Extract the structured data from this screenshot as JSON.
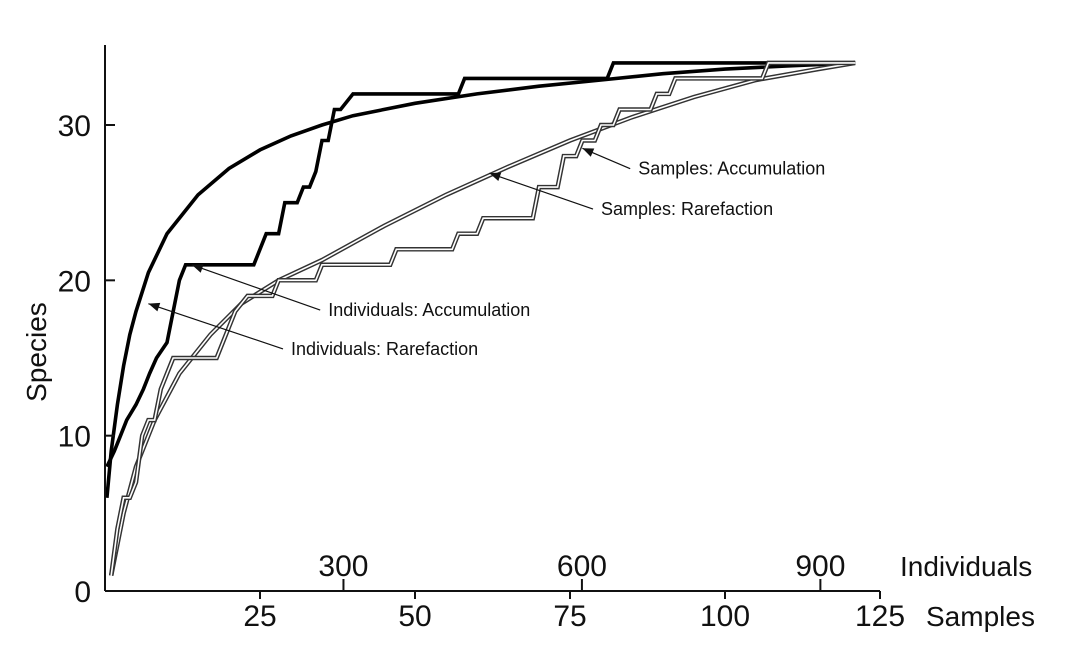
{
  "chart_data": {
    "type": "line",
    "ylabel": "Species",
    "ylim": [
      0,
      35
    ],
    "y_ticks": [
      0,
      10,
      20,
      30
    ],
    "x_axes": [
      {
        "name": "samples_axis",
        "label": "Samples",
        "range": [
          0,
          125
        ],
        "ticks": [
          25,
          50,
          75,
          100,
          125
        ]
      },
      {
        "name": "individuals_axis",
        "label": "Individuals",
        "range": [
          0,
          975
        ],
        "ticks": [
          300,
          600,
          900
        ]
      }
    ],
    "grid": false,
    "series": [
      {
        "name": "Individuals: Rarefaction",
        "style": "thick",
        "points": [
          [
            0.3,
            6
          ],
          [
            1,
            9
          ],
          [
            2,
            12
          ],
          [
            3,
            14.5
          ],
          [
            4,
            16.5
          ],
          [
            5,
            18
          ],
          [
            7,
            20.5
          ],
          [
            10,
            23
          ],
          [
            15,
            25.5
          ],
          [
            20,
            27.2
          ],
          [
            25,
            28.4
          ],
          [
            30,
            29.3
          ],
          [
            35,
            30
          ],
          [
            40,
            30.6
          ],
          [
            50,
            31.4
          ],
          [
            60,
            32
          ],
          [
            70,
            32.5
          ],
          [
            80,
            32.9
          ],
          [
            90,
            33.3
          ],
          [
            100,
            33.6
          ],
          [
            110,
            33.8
          ],
          [
            121,
            34
          ]
        ]
      },
      {
        "name": "Individuals: Accumulation",
        "style": "thick-step",
        "points": [
          [
            0.3,
            8
          ],
          [
            1.5,
            9
          ],
          [
            2.5,
            10
          ],
          [
            3.5,
            11
          ],
          [
            5,
            12
          ],
          [
            6.2,
            13
          ],
          [
            7.2,
            14
          ],
          [
            8.3,
            15
          ],
          [
            10,
            16
          ],
          [
            11,
            18
          ],
          [
            12,
            20
          ],
          [
            13,
            21
          ],
          [
            24,
            21
          ],
          [
            26,
            23
          ],
          [
            28,
            23
          ],
          [
            29,
            25
          ],
          [
            31,
            25
          ],
          [
            32,
            26
          ],
          [
            33,
            26
          ],
          [
            34,
            27
          ],
          [
            35,
            29
          ],
          [
            36,
            29
          ],
          [
            37,
            31
          ],
          [
            38,
            31
          ],
          [
            40,
            32
          ],
          [
            57,
            32
          ],
          [
            58,
            33
          ],
          [
            81,
            33
          ],
          [
            82,
            34
          ],
          [
            121,
            34
          ]
        ]
      },
      {
        "name": "Samples: Rarefaction",
        "style": "double",
        "points": [
          [
            1,
            1
          ],
          [
            3,
            5
          ],
          [
            5,
            8
          ],
          [
            8,
            11
          ],
          [
            12,
            14
          ],
          [
            17,
            16.5
          ],
          [
            22,
            18.5
          ],
          [
            28,
            20
          ],
          [
            35,
            21.3
          ],
          [
            45,
            23.5
          ],
          [
            55,
            25.5
          ],
          [
            65,
            27.3
          ],
          [
            75,
            29
          ],
          [
            85,
            30.5
          ],
          [
            95,
            31.8
          ],
          [
            105,
            32.9
          ],
          [
            115,
            33.6
          ],
          [
            121,
            34
          ]
        ]
      },
      {
        "name": "Samples: Accumulation",
        "style": "double-step",
        "points": [
          [
            1,
            1
          ],
          [
            2,
            4
          ],
          [
            3,
            6
          ],
          [
            4,
            6
          ],
          [
            5,
            7
          ],
          [
            6,
            10
          ],
          [
            7,
            11
          ],
          [
            8,
            11
          ],
          [
            9,
            13
          ],
          [
            10,
            14
          ],
          [
            11,
            15
          ],
          [
            18,
            15
          ],
          [
            19,
            16
          ],
          [
            20,
            17
          ],
          [
            21,
            18
          ],
          [
            23,
            19
          ],
          [
            27,
            19
          ],
          [
            28,
            20
          ],
          [
            34,
            20
          ],
          [
            35,
            21
          ],
          [
            46,
            21
          ],
          [
            47,
            22
          ],
          [
            56,
            22
          ],
          [
            57,
            23
          ],
          [
            60,
            23
          ],
          [
            61,
            24
          ],
          [
            69,
            24
          ],
          [
            70,
            26
          ],
          [
            73,
            26
          ],
          [
            74,
            28
          ],
          [
            76,
            28
          ],
          [
            77,
            29
          ],
          [
            79,
            29
          ],
          [
            80,
            30
          ],
          [
            82,
            30
          ],
          [
            83,
            31
          ],
          [
            88,
            31
          ],
          [
            89,
            32
          ],
          [
            91,
            32
          ],
          [
            92,
            33
          ],
          [
            106,
            33
          ],
          [
            107,
            34
          ],
          [
            121,
            34
          ]
        ]
      }
    ],
    "annotations": [
      {
        "text": "Samples: Accumulation",
        "target": [
          77,
          28.5
        ],
        "label_at": [
          86,
          26.8
        ]
      },
      {
        "text": "Samples: Rarefaction",
        "target": [
          62,
          26.9
        ],
        "label_at": [
          80,
          24.2
        ]
      },
      {
        "text": "Individuals: Accumulation",
        "target": [
          14,
          21
        ],
        "label_at": [
          36,
          17.7
        ]
      },
      {
        "text": "Individuals: Rarefaction",
        "target": [
          7,
          18.5
        ],
        "label_at": [
          30,
          15.2
        ]
      }
    ]
  }
}
